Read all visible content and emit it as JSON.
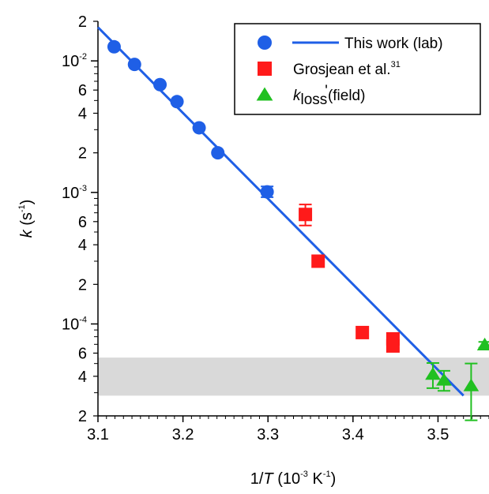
{
  "chart_data": {
    "type": "scatter",
    "x_scale": "linear",
    "y_scale": "log",
    "xlim": [
      3.1,
      3.56
    ],
    "ylim": [
      2e-05,
      0.02
    ],
    "xlabel": {
      "prefix": "1/",
      "var": "T",
      "unit": " (10",
      "exp1": "-3",
      "unit2": " K",
      "exp2": "-1",
      "suffix": ")"
    },
    "ylabel": {
      "var": "k",
      "unit": " (s",
      "exp": "-1",
      "suffix": ")"
    },
    "x_ticks": [
      "3.1",
      "3.2",
      "3.3",
      "3.4",
      "3.5"
    ],
    "x_tick_values": [
      3.1,
      3.2,
      3.3,
      3.4,
      3.5
    ],
    "y_major_ticks": [
      {
        "value": 0.01,
        "base": "10",
        "exp": "-2"
      },
      {
        "value": 0.001,
        "base": "10",
        "exp": "-3"
      },
      {
        "value": 0.0001,
        "base": "10",
        "exp": "-4"
      }
    ],
    "y_minor_ticks": [
      {
        "value": 0.02,
        "label": "2"
      },
      {
        "value": 0.006,
        "label": "6"
      },
      {
        "value": 0.004,
        "label": "4"
      },
      {
        "value": 0.002,
        "label": "2"
      },
      {
        "value": 0.0006,
        "label": "6"
      },
      {
        "value": 0.0004,
        "label": "4"
      },
      {
        "value": 0.0002,
        "label": "2"
      },
      {
        "value": 6e-05,
        "label": "6"
      },
      {
        "value": 4e-05,
        "label": "4"
      },
      {
        "value": 2e-05,
        "label": "2"
      }
    ],
    "shaded_band": {
      "y_range": [
        2.85e-05,
        5.55e-05
      ],
      "color": "#d9d9d9"
    },
    "series": [
      {
        "name": "This work (lab)",
        "marker": "circle",
        "color": "#1f5fe6",
        "points": [
          {
            "x": 3.119,
            "y": 0.0128
          },
          {
            "x": 3.143,
            "y": 0.0094
          },
          {
            "x": 3.173,
            "y": 0.0066
          },
          {
            "x": 3.193,
            "y": 0.0049
          },
          {
            "x": 3.219,
            "y": 0.0031
          },
          {
            "x": 3.241,
            "y": 0.002
          },
          {
            "x": 3.299,
            "y": 0.00101,
            "err_lo": 0.00092,
            "err_hi": 0.00111
          }
        ]
      },
      {
        "name": "Grosjean et al.",
        "name_sup": "31",
        "marker": "square",
        "color": "#ff1a1a",
        "points": [
          {
            "x": 3.344,
            "y": 0.00068,
            "err_lo": 0.00056,
            "err_hi": 0.00081
          },
          {
            "x": 3.359,
            "y": 0.0003
          },
          {
            "x": 3.411,
            "y": 8.6e-05
          },
          {
            "x": 3.447,
            "y": 6.8e-05
          },
          {
            "x": 3.447,
            "y": 7.7e-05
          }
        ]
      },
      {
        "name_prefix": "k",
        "name_sub": "loss",
        "name_prime": "'",
        "name_suffix": "(field)",
        "marker": "triangle",
        "color": "#21c021",
        "points": [
          {
            "x": 3.494,
            "y": 4.15e-05,
            "err_lo": 3.25e-05,
            "err_hi": 5.05e-05
          },
          {
            "x": 3.507,
            "y": 3.75e-05,
            "err_lo": 3.1e-05,
            "err_hi": 4.4e-05
          },
          {
            "x": 3.539,
            "y": 3.4e-05,
            "err_lo": 1.85e-05,
            "err_hi": 5e-05
          },
          {
            "x": 3.555,
            "y": 6.95e-05,
            "err_lo": 6.6e-05,
            "err_hi": 7.3e-05
          }
        ]
      }
    ],
    "fit_line": {
      "color": "#1f5fe6",
      "x": [
        3.1,
        3.53
      ],
      "y": [
        0.018,
        2.85e-05
      ]
    },
    "legend": {
      "position": "top-right"
    }
  }
}
